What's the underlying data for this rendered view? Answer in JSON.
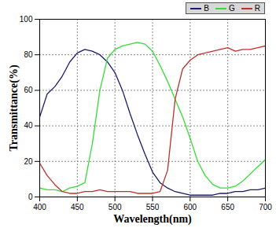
{
  "chart_data": {
    "type": "line",
    "x_label": "Wavelength(nm)",
    "y_label": "Transmittance(%)",
    "x": [
      400,
      410,
      420,
      430,
      440,
      450,
      460,
      470,
      480,
      490,
      500,
      510,
      520,
      530,
      540,
      550,
      560,
      570,
      580,
      590,
      600,
      610,
      620,
      630,
      640,
      650,
      660,
      670,
      680,
      690,
      700
    ],
    "series": [
      {
        "name": "B",
        "color": "#1a1a6e",
        "values": [
          45,
          58,
          62,
          68,
          76,
          81,
          83,
          82,
          80,
          76,
          70,
          60,
          47,
          35,
          24,
          14,
          8,
          5,
          3,
          2,
          1,
          1,
          1,
          1,
          2,
          2,
          3,
          3,
          4,
          4,
          5
        ]
      },
      {
        "name": "G",
        "color": "#33dd33",
        "values": [
          5,
          4,
          4,
          3,
          5,
          6,
          8,
          30,
          60,
          78,
          83,
          85,
          86,
          87,
          86,
          82,
          74,
          65,
          55,
          45,
          33,
          20,
          12,
          7,
          5,
          5,
          6,
          9,
          13,
          17,
          21
        ]
      },
      {
        "name": "R",
        "color": "#c0302a",
        "values": [
          19,
          12,
          7,
          3,
          2,
          2,
          3,
          3,
          4,
          3,
          3,
          3,
          3,
          2,
          2,
          2,
          3,
          15,
          55,
          72,
          77,
          80,
          81,
          82,
          83,
          84,
          82,
          83,
          83,
          84,
          85
        ]
      }
    ],
    "xlim": [
      400,
      700
    ],
    "ylim": [
      0,
      100
    ],
    "xticks": [
      400,
      450,
      500,
      550,
      600,
      650,
      700
    ],
    "yticks": [
      0,
      20,
      40,
      60,
      80,
      100
    ],
    "grid": true,
    "legend": "upper right"
  }
}
